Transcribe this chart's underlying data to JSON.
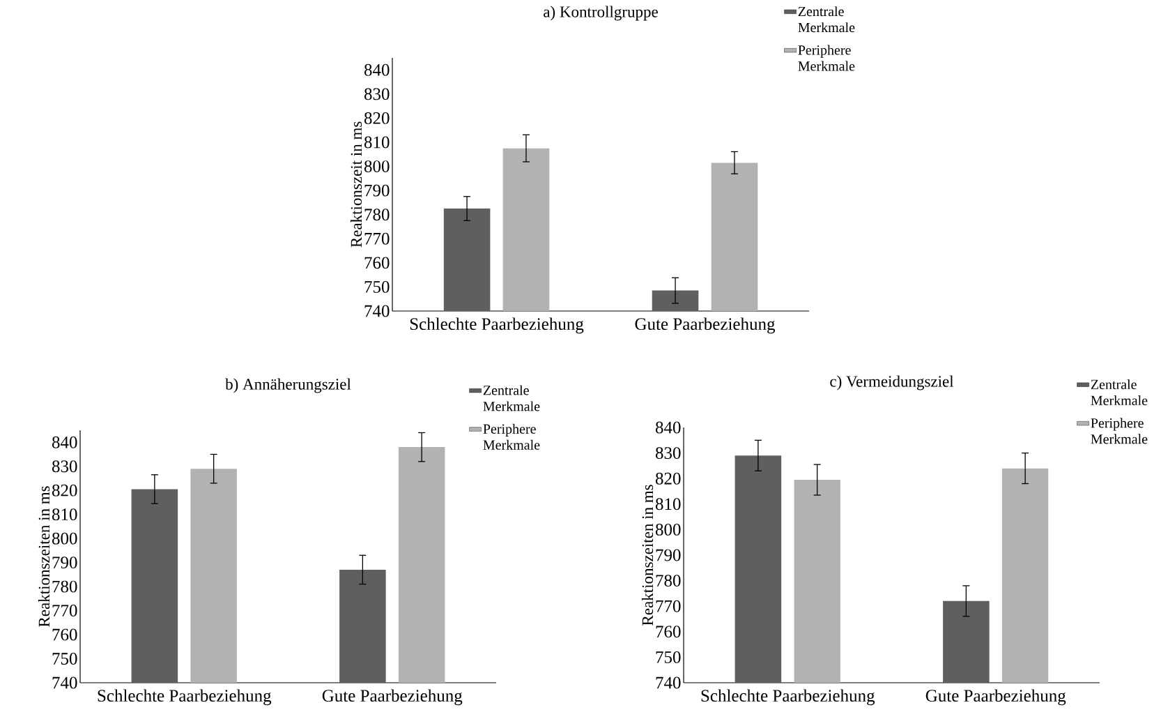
{
  "chart_data": [
    {
      "type": "bar",
      "title": "a) Kontrollgruppe",
      "ylabel": "Reaktionszeit in ms",
      "categories": [
        "Schlechte Paarbeziehung",
        "Gute Paarbeziehung"
      ],
      "series": [
        {
          "name": "Zentrale Merkmale",
          "color": "#5f5f5f",
          "values": [
            782.5,
            748.5
          ],
          "errors": [
            5,
            5.3
          ]
        },
        {
          "name": "Periphere Merkmale",
          "color": "#b2b2b2",
          "values": [
            807.5,
            801.5
          ],
          "errors": [
            5.6,
            4.6
          ]
        }
      ],
      "ylim": [
        740,
        845
      ],
      "yticks": [
        740,
        750,
        760,
        770,
        780,
        790,
        800,
        810,
        820,
        830,
        840
      ],
      "legend": "top right"
    },
    {
      "type": "bar",
      "title": "b) Annäherungsziel",
      "ylabel": "Reaktionszeiten in ms",
      "categories": [
        "Schlechte Paarbeziehung",
        "Gute Paarbeziehung"
      ],
      "series": [
        {
          "name": "Zentrale Merkmale",
          "color": "#5f5f5f",
          "values": [
            820.5,
            787
          ],
          "errors": [
            6,
            6
          ]
        },
        {
          "name": "Periphere Merkmale",
          "color": "#b2b2b2",
          "values": [
            829,
            838
          ],
          "errors": [
            6,
            6
          ]
        }
      ],
      "ylim": [
        740,
        845
      ],
      "yticks": [
        740,
        750,
        760,
        770,
        780,
        790,
        800,
        810,
        820,
        830,
        840
      ],
      "legend": "top right"
    },
    {
      "type": "bar",
      "title": "c) Vermeidungsziel",
      "ylabel": "Reaktionszeiten in ms",
      "categories": [
        "Schlechte Paarbeziehung",
        "Gute Paarbeziehung"
      ],
      "series": [
        {
          "name": "Zentrale Merkmale",
          "color": "#5f5f5f",
          "values": [
            829,
            772
          ],
          "errors": [
            6,
            6
          ]
        },
        {
          "name": "Periphere Merkmale",
          "color": "#b2b2b2",
          "values": [
            819.5,
            824
          ],
          "errors": [
            6,
            6
          ]
        }
      ],
      "ylim": [
        740,
        840
      ],
      "yticks": [
        740,
        750,
        760,
        770,
        780,
        790,
        800,
        810,
        820,
        830,
        840
      ],
      "legend": "top right"
    }
  ]
}
